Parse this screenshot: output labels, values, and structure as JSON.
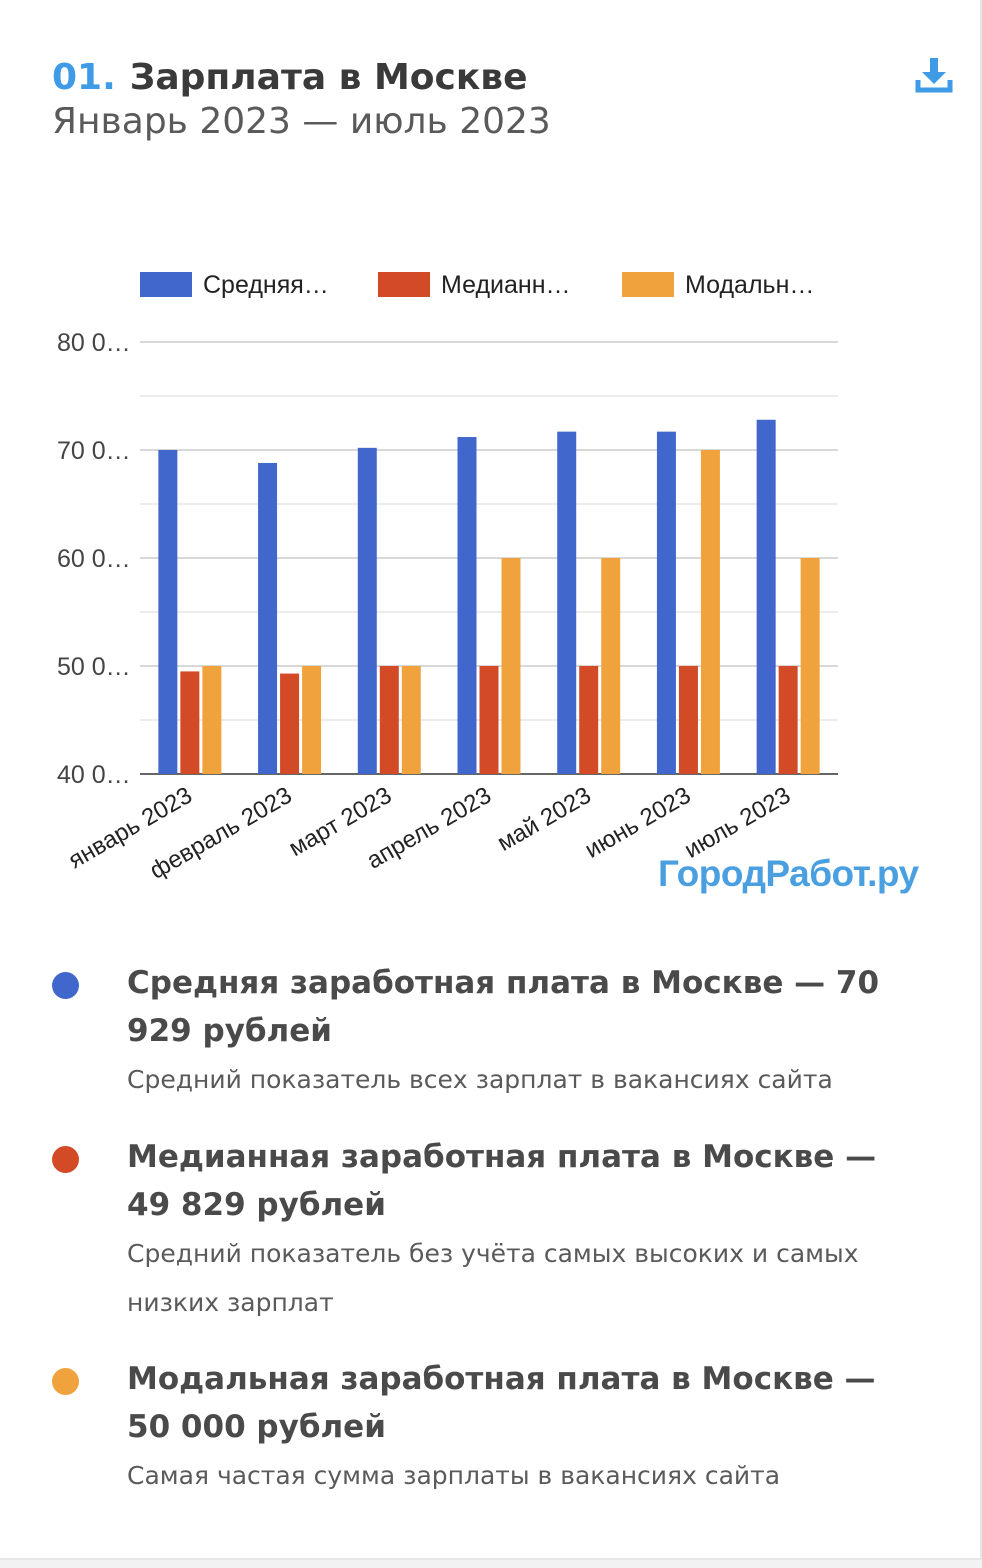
{
  "header": {
    "number": "01.",
    "title": "Зарплата в Москве",
    "subtitle": "Январь 2023 — июль 2023",
    "download_icon": "download-icon"
  },
  "watermark": "ГородРабот.ру",
  "colors": {
    "accent": "#3f9be6",
    "average": "#4166cc",
    "median": "#d24a26",
    "mode": "#f0a33c"
  },
  "chart_data": {
    "type": "bar",
    "categories": [
      "январь 2023",
      "февраль 2023",
      "март 2023",
      "апрель 2023",
      "май 2023",
      "июнь 2023",
      "июль 2023"
    ],
    "series": [
      {
        "name": "Средняя…",
        "color": "#4166cc",
        "values": [
          70000,
          68800,
          70200,
          71200,
          71700,
          71700,
          72800
        ]
      },
      {
        "name": "Медианн…",
        "color": "#d24a26",
        "values": [
          49500,
          49300,
          50000,
          50000,
          50000,
          50000,
          50000
        ]
      },
      {
        "name": "Модальн…",
        "color": "#f0a33c",
        "values": [
          50000,
          50000,
          50000,
          60000,
          60000,
          70000,
          60000
        ]
      }
    ],
    "yticks": [
      "40 0…",
      "50 0…",
      "60 0…",
      "70 0…",
      "80 0…"
    ],
    "ylim": [
      40000,
      80000
    ],
    "grid": true,
    "legend": "top"
  },
  "info": [
    {
      "color": "#4166cc",
      "title": "Средняя заработная плата в Москве — 70 929 рублей",
      "desc": "Средний показатель всех зарплат в вакансиях сайта"
    },
    {
      "color": "#d24a26",
      "title": "Медианная заработная плата в Москве — 49 829 рублей",
      "desc": "Средний показатель без учёта самых высоких и самых низких зарплат"
    },
    {
      "color": "#f0a33c",
      "title": "Модальная заработная плата в Москве — 50 000 рублей",
      "desc": "Самая частая сумма зарплаты в вакансиях сайта"
    }
  ]
}
